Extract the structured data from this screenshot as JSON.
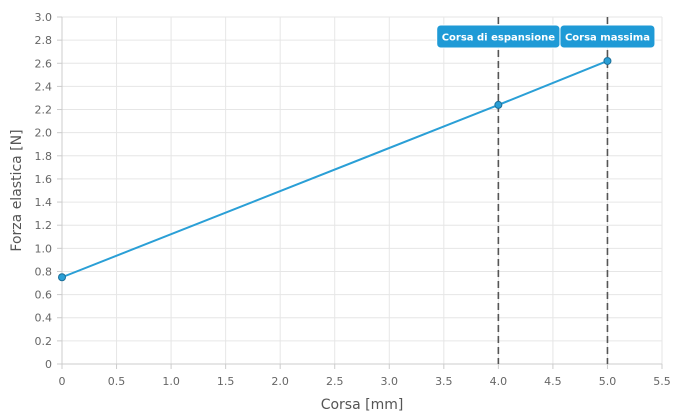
{
  "chart_data": {
    "type": "line",
    "title": "",
    "xlabel": "Corsa [mm]",
    "ylabel": "Forza elastica [N]",
    "xlim": [
      0,
      5.5
    ],
    "ylim": [
      0,
      3.0
    ],
    "x_ticks": [
      "0",
      "0.5",
      "1.0",
      "1.5",
      "2.0",
      "2.5",
      "3.0",
      "3.5",
      "4.0",
      "4.5",
      "5.0",
      "5.5"
    ],
    "y_ticks": [
      "0",
      "0.2",
      "0.4",
      "0.6",
      "0.8",
      "1.0",
      "1.2",
      "1.4",
      "1.6",
      "1.8",
      "2.0",
      "2.2",
      "2.4",
      "2.6",
      "2.8",
      "3.0"
    ],
    "grid": true,
    "series": [
      {
        "color": "#2a9fd6",
        "points": [
          {
            "x": 0,
            "y": 0.75
          },
          {
            "x": 4.0,
            "y": 2.24
          },
          {
            "x": 5.0,
            "y": 2.62
          }
        ]
      }
    ],
    "annotations": [
      {
        "label": "Corsa di espansione",
        "x": 4.0,
        "line_style": "dashed",
        "color": "#1f9ad6"
      },
      {
        "label": "Corsa massima",
        "x": 5.0,
        "line_style": "dashed",
        "color": "#1f9ad6"
      }
    ]
  }
}
